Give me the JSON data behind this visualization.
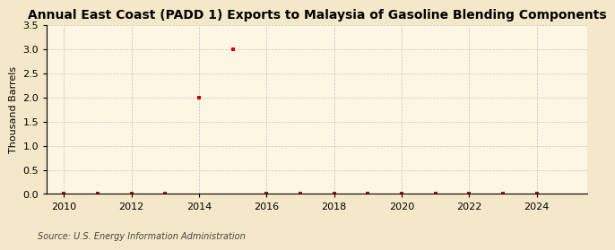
{
  "title": "Annual East Coast (PADD 1) Exports to Malaysia of Gasoline Blending Components",
  "ylabel": "Thousand Barrels",
  "source": "Source: U.S. Energy Information Administration",
  "background_color": "#f5e8c8",
  "plot_background_color": "#fdf6e3",
  "grid_color": "#b0b0b0",
  "marker_color": "#cc0000",
  "x_data": [
    2010,
    2011,
    2012,
    2013,
    2014,
    2015,
    2016,
    2017,
    2018,
    2019,
    2020,
    2021,
    2022,
    2023,
    2024
  ],
  "y_data": [
    0,
    0,
    0,
    0,
    2.0,
    3.0,
    0,
    0,
    0,
    0,
    0,
    0,
    0,
    0,
    0
  ],
  "xlim": [
    2009.5,
    2025.5
  ],
  "ylim": [
    0,
    3.5
  ],
  "yticks": [
    0.0,
    0.5,
    1.0,
    1.5,
    2.0,
    2.5,
    3.0,
    3.5
  ],
  "xticks": [
    2010,
    2012,
    2014,
    2016,
    2018,
    2020,
    2022,
    2024
  ],
  "title_fontsize": 10,
  "label_fontsize": 8,
  "tick_fontsize": 8,
  "source_fontsize": 7
}
